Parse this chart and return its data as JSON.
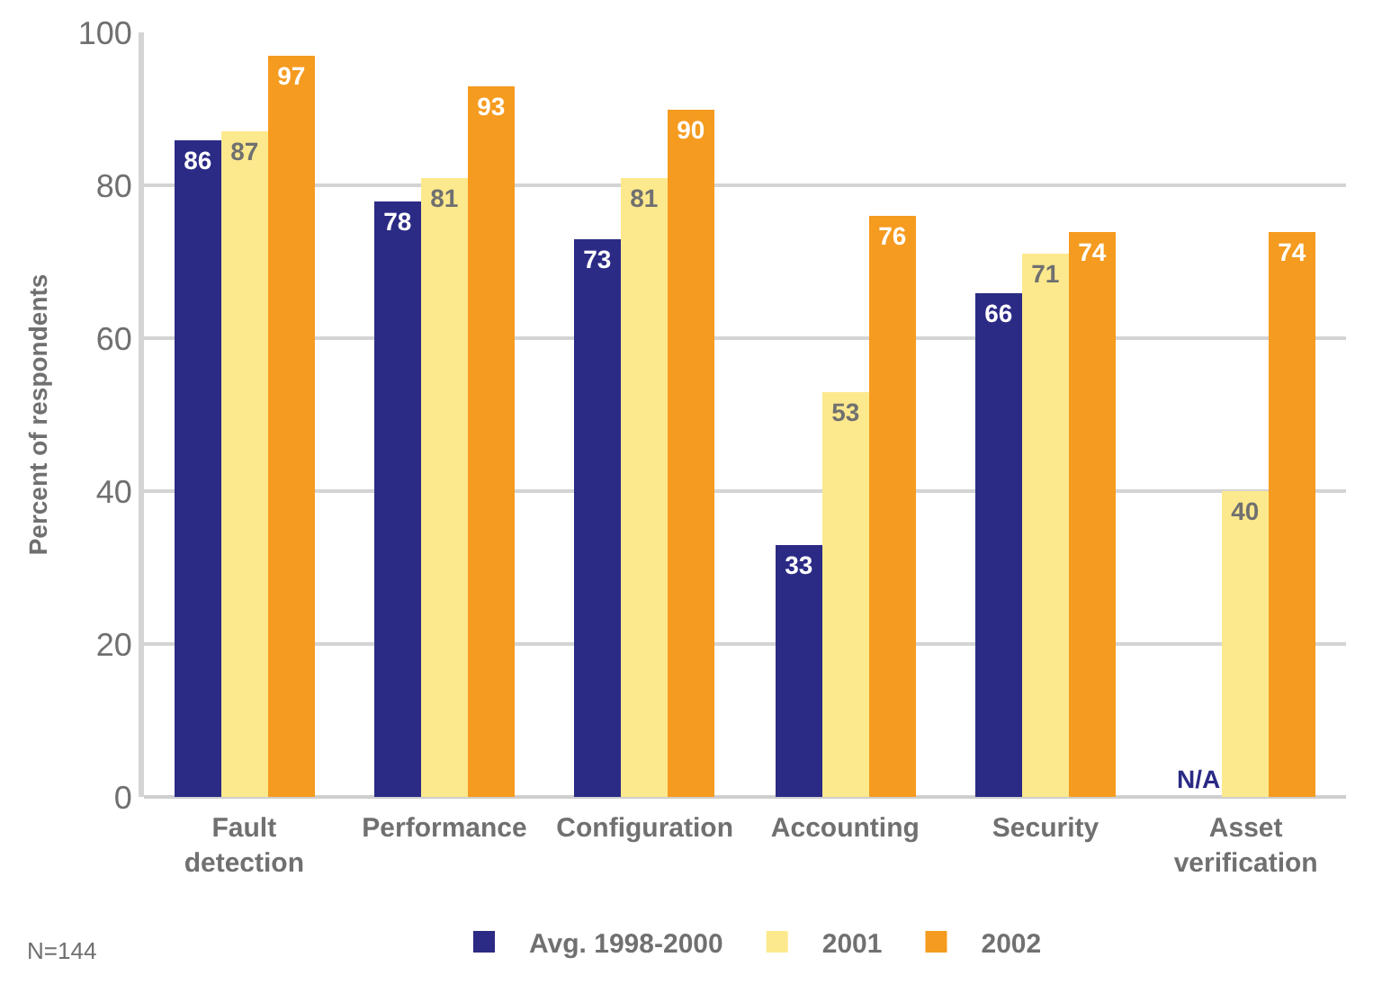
{
  "chart_data": {
    "type": "bar",
    "ylabel": "Percent of respondents",
    "categories": [
      "Fault detection",
      "Performance",
      "Configuration",
      "Accounting",
      "Security",
      "Asset verification"
    ],
    "series": [
      {
        "name": "Avg. 1998-2000",
        "color": "#2b2a85",
        "values": [
          86,
          78,
          73,
          33,
          66,
          null
        ],
        "value_labels": [
          "86",
          "78",
          "73",
          "33",
          "66",
          "N/A"
        ]
      },
      {
        "name": "2001",
        "color": "#fde98d",
        "values": [
          87,
          81,
          81,
          53,
          71,
          40
        ],
        "value_labels": [
          "87",
          "81",
          "81",
          "53",
          "71",
          "40"
        ]
      },
      {
        "name": "2002",
        "color": "#f59b1f",
        "values": [
          97,
          93,
          90,
          76,
          74,
          74
        ],
        "value_labels": [
          "97",
          "93",
          "90",
          "76",
          "74",
          "74"
        ]
      }
    ],
    "ylim": [
      0,
      100
    ],
    "yticks": [
      0,
      20,
      40,
      60,
      80,
      100
    ],
    "grid": "y",
    "legend": "bottom",
    "annotations": [
      "N=144"
    ]
  }
}
